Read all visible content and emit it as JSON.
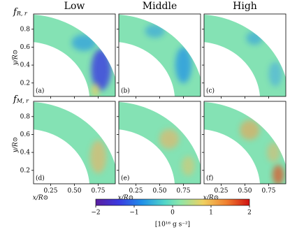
{
  "chart_data": {
    "type": "image-grid",
    "column_titles": [
      "Low",
      "Middle",
      "High"
    ],
    "row_labels": [
      {
        "symbol": "f",
        "subscript": "R, r"
      },
      {
        "symbol": "f",
        "subscript": "M, r"
      }
    ],
    "ylabel": "y/R⊙",
    "xlabel": "x/R⊙",
    "panel_labels": [
      [
        "(a)",
        "(b)",
        "(c)"
      ],
      [
        "(d)",
        "(e)",
        "(f)"
      ]
    ],
    "xlim": [
      0.07,
      0.93
    ],
    "ylim": [
      0.05,
      0.97
    ],
    "xticks": [
      0.25,
      {
        "value": 0.5,
        "label": "0.50"
      },
      0.75
    ],
    "yticks": [
      0.2,
      0.4,
      0.6,
      0.8
    ],
    "colorbar": {
      "lim": [
        -2,
        2
      ],
      "ticks": [
        {
          "value": -2,
          "label": "−2"
        },
        {
          "value": -1,
          "label": "−1"
        },
        0,
        1,
        2
      ],
      "label": "[10¹⁶ g s⁻²]"
    }
  }
}
